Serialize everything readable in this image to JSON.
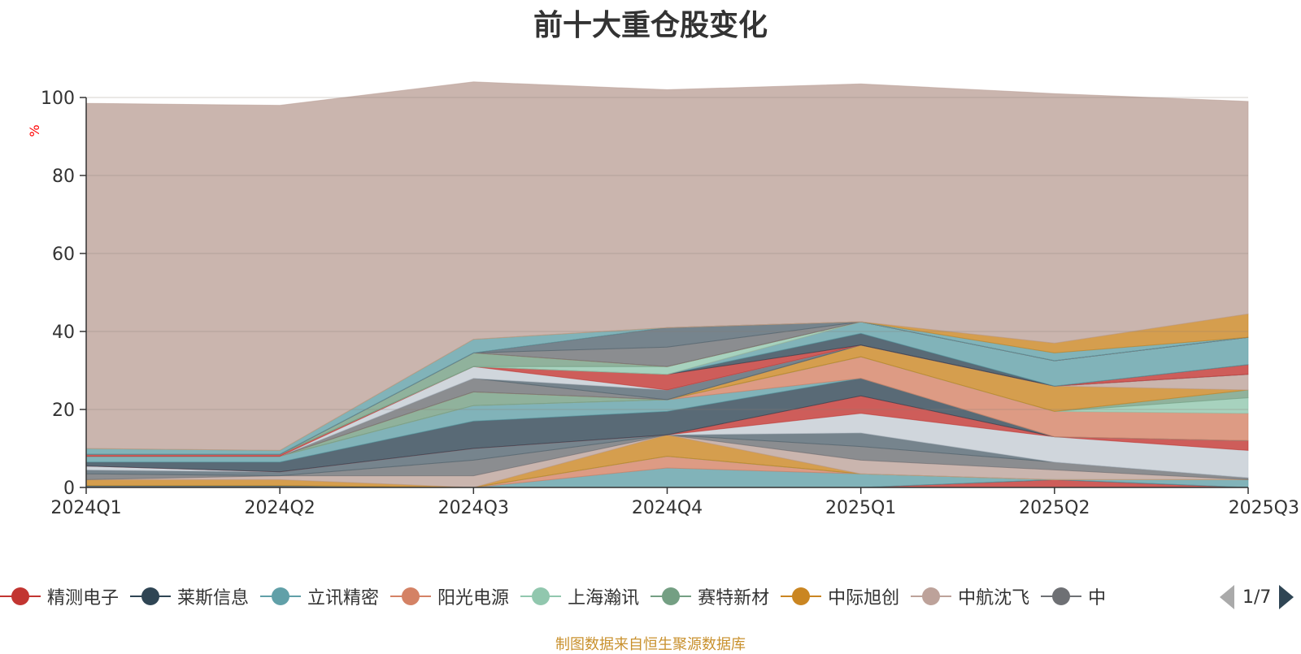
{
  "chart_data": {
    "type": "area",
    "title": "前十大重仓股变化",
    "ylabel": "%",
    "ylim": [
      0,
      100
    ],
    "yticks": [
      0,
      20,
      40,
      60,
      80,
      100
    ],
    "stacked": true,
    "grid": true,
    "legend_position": "bottom",
    "categories": [
      "2024Q1",
      "2024Q2",
      "2024Q3",
      "2024Q4",
      "2025Q1",
      "2025Q2",
      "2025Q3"
    ],
    "series": [
      {
        "name": "精测电子",
        "color": "#c23531",
        "values": [
          0,
          0,
          0,
          0,
          0,
          2,
          0
        ]
      },
      {
        "name": "莱斯信息",
        "color": "#2f4554",
        "values": [
          0.5,
          0.5,
          0,
          0,
          0,
          0,
          0
        ]
      },
      {
        "name": "立讯精密",
        "color": "#61a0a8",
        "values": [
          0,
          0,
          0,
          5,
          3.5,
          0,
          2
        ]
      },
      {
        "name": "阳光电源",
        "color": "#d48265",
        "values": [
          0,
          0,
          0,
          3,
          0,
          0,
          0
        ]
      },
      {
        "name": "上海瀚讯",
        "color": "#91c7ae",
        "values": [
          0,
          0,
          0,
          0,
          0,
          0,
          0
        ]
      },
      {
        "name": "赛特新材",
        "color": "#749f83",
        "values": [
          0,
          0,
          0,
          0,
          0,
          0,
          0
        ]
      },
      {
        "name": "中际旭创",
        "color": "#ca8622",
        "values": [
          1.5,
          1.5,
          0,
          5.5,
          0,
          0,
          0
        ]
      },
      {
        "name": "中航沈飞",
        "color": "#bda29a",
        "values": [
          0,
          1,
          3,
          0,
          3.5,
          2.5,
          0
        ]
      },
      {
        "name": "",
        "color": "#6e7074",
        "values": [
          1.5,
          0,
          4,
          0,
          3.5,
          2,
          0.5
        ]
      },
      {
        "name": "",
        "color": "#546570",
        "values": [
          1,
          1,
          3,
          0,
          3.5,
          0,
          0
        ]
      },
      {
        "name": "",
        "color": "#c4ccd3",
        "values": [
          1,
          0,
          0,
          0,
          5,
          6.5,
          7
        ]
      },
      {
        "name": "",
        "color": "#c23531",
        "values": [
          0,
          0,
          0,
          0,
          4.5,
          0,
          2.5
        ]
      },
      {
        "name": "",
        "color": "#2f4554",
        "values": [
          1,
          2.5,
          7,
          6,
          4.5,
          0,
          0
        ]
      },
      {
        "name": "",
        "color": "#61a0a8",
        "values": [
          1.5,
          1.5,
          4,
          3,
          0,
          0,
          0
        ]
      },
      {
        "name": "",
        "color": "#d48265",
        "values": [
          0,
          0,
          0,
          0,
          5.5,
          6.5,
          7
        ]
      },
      {
        "name": "",
        "color": "#91c7ae",
        "values": [
          0,
          0,
          0,
          0,
          0,
          0,
          4
        ]
      },
      {
        "name": "",
        "color": "#749f83",
        "values": [
          0,
          0,
          3.5,
          0,
          0,
          0,
          2
        ]
      },
      {
        "name": "",
        "color": "#ca8622",
        "values": [
          0,
          0,
          0,
          0,
          3,
          6.5,
          0
        ]
      },
      {
        "name": "",
        "color": "#bda29a",
        "values": [
          0,
          0,
          0,
          0,
          0,
          0,
          4
        ]
      },
      {
        "name": "",
        "color": "#6e7074",
        "values": [
          0,
          0,
          3.5,
          0,
          0,
          0,
          0
        ]
      },
      {
        "name": "",
        "color": "#546570",
        "values": [
          0,
          0,
          0,
          2.5,
          0,
          0,
          0
        ]
      },
      {
        "name": "",
        "color": "#c4ccd3",
        "values": [
          0,
          0,
          3,
          0,
          0,
          0,
          0
        ]
      },
      {
        "name": "",
        "color": "#c23531",
        "values": [
          0.5,
          0.5,
          0,
          4,
          0,
          0,
          2.5
        ]
      },
      {
        "name": "",
        "color": "#2f4554",
        "values": [
          0,
          0,
          0,
          0,
          3,
          0,
          0
        ]
      },
      {
        "name": "",
        "color": "#61a0a8",
        "values": [
          0,
          0,
          0,
          0,
          3,
          6.5,
          7
        ]
      },
      {
        "name": "",
        "color": "#d48265",
        "values": [
          0,
          0,
          0,
          0,
          0,
          0,
          0
        ]
      },
      {
        "name": "",
        "color": "#91c7ae",
        "values": [
          0,
          0,
          0,
          2,
          0,
          0,
          0
        ]
      },
      {
        "name": "",
        "color": "#749f83",
        "values": [
          0,
          0,
          3.5,
          0,
          0,
          0,
          0
        ]
      },
      {
        "name": "",
        "color": "#ca8622",
        "values": [
          0,
          0,
          0,
          0,
          0,
          0,
          0
        ]
      },
      {
        "name": "",
        "color": "#bda29a",
        "values": [
          0,
          0,
          0,
          0,
          0,
          0,
          0
        ]
      },
      {
        "name": "",
        "color": "#6e7074",
        "values": [
          0,
          0,
          0,
          5,
          0,
          0,
          0
        ]
      },
      {
        "name": "",
        "color": "#546570",
        "values": [
          0,
          0,
          0,
          5,
          0,
          0,
          0
        ]
      },
      {
        "name": "",
        "color": "#c4ccd3",
        "values": [
          0,
          0,
          0,
          0,
          0,
          0,
          0
        ]
      },
      {
        "name": "",
        "color": "#c23531",
        "values": [
          0,
          0,
          0,
          0,
          0,
          0,
          0
        ]
      },
      {
        "name": "",
        "color": "#2f4554",
        "values": [
          0,
          0,
          0,
          0,
          0,
          0,
          0
        ]
      },
      {
        "name": "",
        "color": "#61a0a8",
        "values": [
          1.5,
          1,
          3.5,
          0,
          0,
          2,
          0
        ]
      },
      {
        "name": "",
        "color": "#ca8622",
        "values": [
          0,
          0,
          0,
          0,
          0,
          2.5,
          6
        ]
      },
      {
        "name": "",
        "color": "#bda29a",
        "values": [
          88.5,
          88.5,
          66,
          61,
          61,
          64,
          54.5
        ]
      }
    ]
  },
  "legend": {
    "items": [
      {
        "label": "精测电子",
        "color": "#c23531"
      },
      {
        "label": "莱斯信息",
        "color": "#2f4554"
      },
      {
        "label": "立讯精密",
        "color": "#61a0a8"
      },
      {
        "label": "阳光电源",
        "color": "#d48265"
      },
      {
        "label": "上海瀚讯",
        "color": "#91c7ae"
      },
      {
        "label": "赛特新材",
        "color": "#749f83"
      },
      {
        "label": "中际旭创",
        "color": "#ca8622"
      },
      {
        "label": "中航沈飞",
        "color": "#bda29a"
      },
      {
        "label": "中",
        "color": "#6e7074"
      }
    ],
    "page_indicator": "1/7"
  },
  "source_note": "制图数据来自恒生聚源数据库"
}
